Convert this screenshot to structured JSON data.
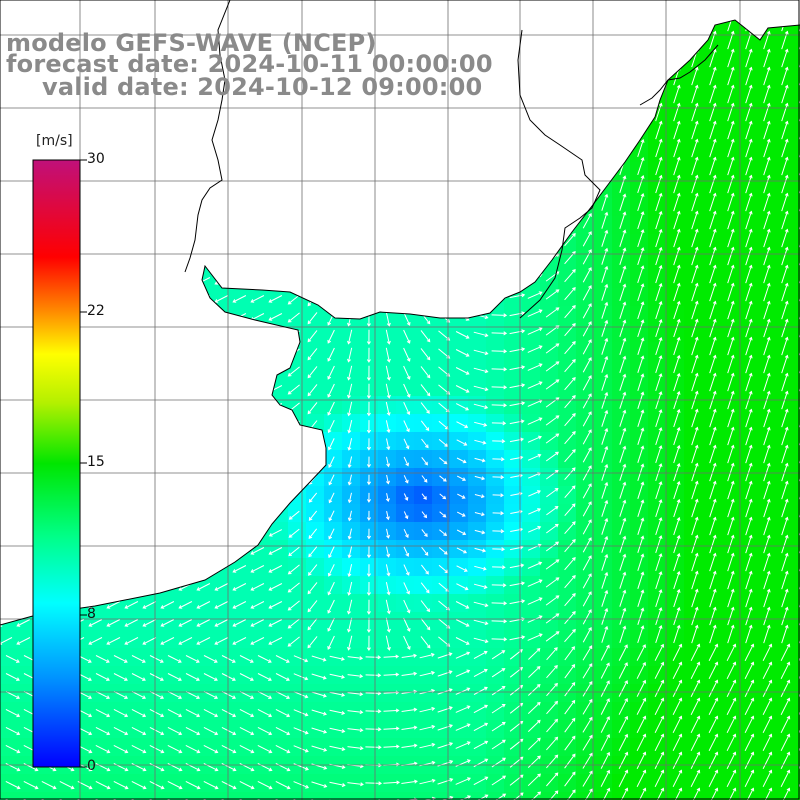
{
  "title": {
    "model": "modelo GEFS-WAVE (NCEP)",
    "forecast": "forecast date: 2024-10-11 00:00:00",
    "valid": "valid date: 2024-10-12 09:00:00"
  },
  "colorbar": {
    "unit": "[m/s]",
    "ticks": [
      "30",
      "22",
      "15",
      "8",
      "0"
    ],
    "min": 0,
    "max": 30
  },
  "colors": {
    "land": "#ffffff",
    "grid": "#6e6e6e",
    "coast": "#000000",
    "title": "#8a8a8a"
  }
}
